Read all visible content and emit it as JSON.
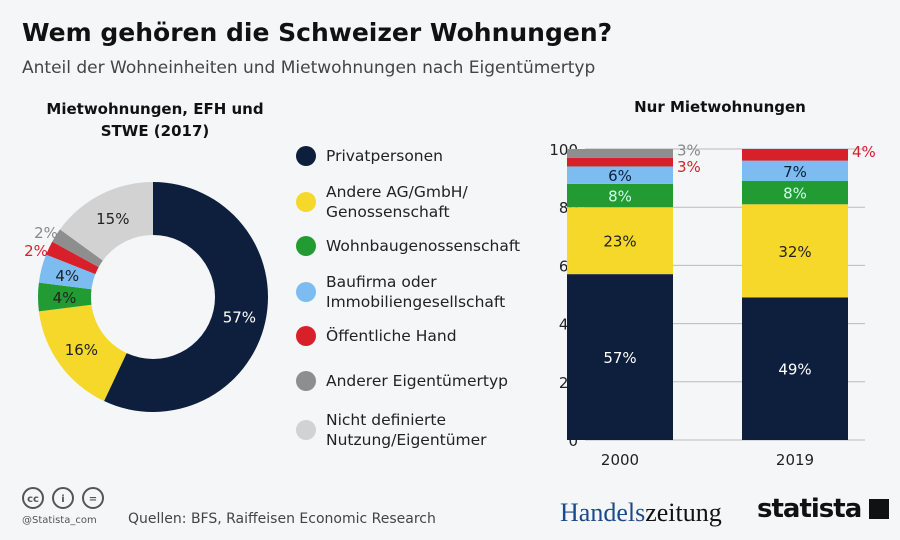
{
  "title": "Wem gehören die Schweizer Wohnungen?",
  "subtitle": "Anteil der Wohneinheiten und Mietwohnungen nach Eigentümertyp",
  "legend": [
    {
      "label": "Privatpersonen",
      "color": "#0d1f3c"
    },
    {
      "label": "Andere AG/GmbH/ Genossenschaft",
      "color": "#f5d82a"
    },
    {
      "label": "Wohnbaugenossenschaft",
      "color": "#239b33"
    },
    {
      "label": "Baufirma oder Immobiliengesellschaft",
      "color": "#7dbcf0"
    },
    {
      "label": "Öffentliche Hand",
      "color": "#d8202a"
    },
    {
      "label": "Anderer Eigentümertyp",
      "color": "#8e8e8e"
    },
    {
      "label": "Nicht definierte Nutzung/Eigentümer",
      "color": "#d2d2d2"
    }
  ],
  "chart_data": [
    {
      "type": "pie",
      "title": "Mietwohnungen, EFH und STWE (2017)",
      "categories": [
        "Privatpersonen",
        "Andere AG/GmbH/ Genossenschaft",
        "Wohnbaugenossenschaft",
        "Baufirma oder Immobiliengesellschaft",
        "Öffentliche Hand",
        "Anderer Eigentümertyp",
        "Nicht definierte Nutzung/Eigentümer"
      ],
      "values": [
        57,
        16,
        4,
        4,
        2,
        2,
        15
      ],
      "labels": [
        "57%",
        "16%",
        "4%",
        "4%",
        "2%",
        "2%",
        "15%"
      ],
      "donut": true
    },
    {
      "type": "bar",
      "stacked": true,
      "title": "Nur Mietwohnungen",
      "categories": [
        "2000",
        "2019"
      ],
      "ylim": [
        0,
        100
      ],
      "yticks": [
        0,
        20,
        40,
        60,
        80,
        100
      ],
      "grid": true,
      "series": [
        {
          "name": "Privatpersonen",
          "values": [
            57,
            49
          ]
        },
        {
          "name": "Andere AG/GmbH/ Genossenschaft",
          "values": [
            23,
            32
          ]
        },
        {
          "name": "Wohnbaugenossenschaft",
          "values": [
            8,
            8
          ]
        },
        {
          "name": "Baufirma oder Immobiliengesellschaft",
          "values": [
            6,
            7
          ]
        },
        {
          "name": "Öffentliche Hand",
          "values": [
            3,
            4
          ]
        },
        {
          "name": "Anderer Eigentümertyp",
          "values": [
            3,
            0
          ]
        }
      ]
    }
  ],
  "footer": {
    "handle": "@Statista_com",
    "source": "Quellen: BFS, Raiffeisen Economic Research",
    "brand1a": "Handels",
    "brand1b": "zeitung",
    "brand2": "statista",
    "cc": [
      "cc",
      "i",
      "="
    ]
  }
}
